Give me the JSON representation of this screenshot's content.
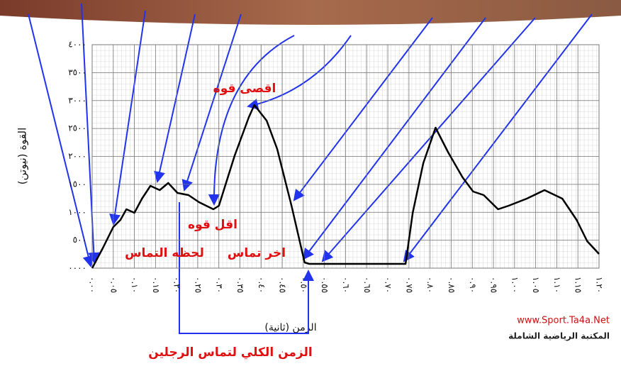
{
  "chart_data": {
    "type": "line",
    "y_label": "القوة (نيوتن)",
    "x_label": "الزمن (ثانية)",
    "x": [
      0,
      0.025,
      0.05,
      0.067,
      0.081,
      0.1,
      0.118,
      0.138,
      0.16,
      0.18,
      0.202,
      0.228,
      0.253,
      0.287,
      0.3,
      0.337,
      0.371,
      0.384,
      0.413,
      0.438,
      0.472,
      0.503,
      0.514,
      0.742,
      0.759,
      0.784,
      0.813,
      0.843,
      0.877,
      0.902,
      0.927,
      0.961,
      0.986,
      1.029,
      1.071,
      1.113,
      1.147,
      1.172,
      1.2
    ],
    "values": [
      0,
      356,
      736,
      863,
      1054,
      990,
      1244,
      1473,
      1397,
      1524,
      1346,
      1308,
      1181,
      1054,
      1117,
      2006,
      2705,
      2921,
      2641,
      2133,
      1117,
      102,
      76,
      76,
      990,
      1879,
      2514,
      2070,
      1625,
      1371,
      1308,
      1054,
      1117,
      1244,
      1397,
      1244,
      863,
      483,
      254
    ],
    "color": "#000000",
    "xlim": [
      0,
      1.2
    ],
    "ylim": [
      0,
      4000
    ],
    "xticks": [
      {
        "value": 0,
        "label": "٠.٠٠"
      },
      {
        "value": 0.05,
        "label": "٠.٠٥"
      },
      {
        "value": 0.1,
        "label": "٠.١٠"
      },
      {
        "value": 0.15,
        "label": "٠.١٥"
      },
      {
        "value": 0.2,
        "label": "٠.٢٠"
      },
      {
        "value": 0.25,
        "label": "٠.٢٥"
      },
      {
        "value": 0.3,
        "label": "٠.٣٠"
      },
      {
        "value": 0.35,
        "label": "٠.٣٥"
      },
      {
        "value": 0.4,
        "label": "٠.٤٠"
      },
      {
        "value": 0.45,
        "label": "٠.٤٥"
      },
      {
        "value": 0.5,
        "label": "٠.٥٠"
      },
      {
        "value": 0.55,
        "label": "٠.٥٥"
      },
      {
        "value": 0.6,
        "label": "٠.٦٠"
      },
      {
        "value": 0.65,
        "label": "٠.٦٥"
      },
      {
        "value": 0.7,
        "label": "٠.٧٠"
      },
      {
        "value": 0.75,
        "label": "٠.٧٥"
      },
      {
        "value": 0.8,
        "label": "٠.٨٠"
      },
      {
        "value": 0.85,
        "label": "٠.٨٥"
      },
      {
        "value": 0.9,
        "label": "٠.٩٠"
      },
      {
        "value": 0.95,
        "label": "٠.٩٥"
      },
      {
        "value": 1,
        "label": "١.٠٠"
      },
      {
        "value": 1.05,
        "label": "١.٠٥"
      },
      {
        "value": 1.1,
        "label": "١.١٠"
      },
      {
        "value": 1.15,
        "label": "١.١٥"
      },
      {
        "value": 1.2,
        "label": "١.٢٠"
      }
    ],
    "yticks": [
      {
        "value": 0,
        "label": "٠٠٠٠"
      },
      {
        "value": 500,
        "label": "٥٠٠"
      },
      {
        "value": 1000,
        "label": "١٠٠٠"
      },
      {
        "value": 1500,
        "label": "١٥٠٠"
      },
      {
        "value": 2000,
        "label": "٢٠٠٠"
      },
      {
        "value": 2500,
        "label": "٢٥٠٠"
      },
      {
        "value": 3000,
        "label": "٣٠٠٠"
      },
      {
        "value": 3500,
        "label": "٣٥٠٠"
      },
      {
        "value": 4000,
        "label": "٤٠٠٠"
      }
    ],
    "grid": true,
    "annotations": [
      "اقصى قوه",
      "اقل قوه",
      "لحظه التماس",
      "اخر تماس",
      "الزمن الكلي لتماس الرجلين"
    ],
    "watermark": [
      "www.Sport.Ta4a.Net",
      "المكتبة الرياضية الشاملة"
    ]
  }
}
